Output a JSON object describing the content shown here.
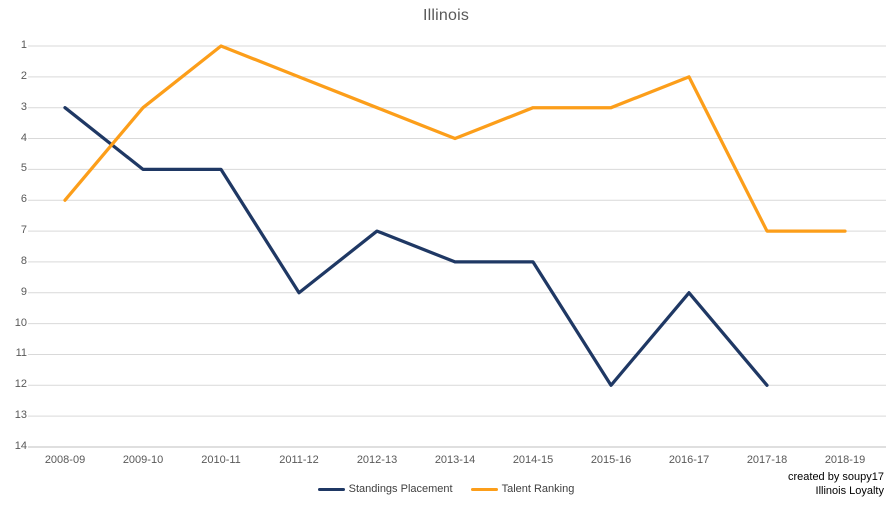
{
  "chart_data": {
    "type": "line",
    "title": "Illinois",
    "categories": [
      "2008-09",
      "2009-10",
      "2010-11",
      "2011-12",
      "2012-13",
      "2013-14",
      "2014-15",
      "2015-16",
      "2016-17",
      "2017-18",
      "2018-19"
    ],
    "series": [
      {
        "name": "Standings Placement",
        "color": "#1F3864",
        "values": [
          3,
          5,
          5,
          9,
          7,
          8,
          8,
          12,
          9,
          12,
          null
        ]
      },
      {
        "name": "Talent Ranking",
        "color": "#FC9E1A",
        "values": [
          6,
          3,
          1,
          2,
          3,
          4,
          3,
          3,
          2,
          7,
          7
        ]
      }
    ],
    "y_axis": {
      "min": 1,
      "max": 14,
      "step": 1,
      "inverted": true,
      "ticks": [
        1,
        2,
        3,
        4,
        5,
        6,
        7,
        8,
        9,
        10,
        11,
        12,
        13,
        14
      ]
    },
    "xlabel": "",
    "ylabel": "",
    "grid": "horizontal",
    "legend_position": "bottom-center"
  },
  "annotation": {
    "line1": "created by soupy17",
    "line2": "Illinois Loyalty"
  },
  "colors": {
    "gridline": "#D9D9D9",
    "axis_line": "#BFBFBF",
    "tick_label": "#595959",
    "title_color": "#595959",
    "legend_text": "#404040",
    "annotation_color": "#000000"
  }
}
